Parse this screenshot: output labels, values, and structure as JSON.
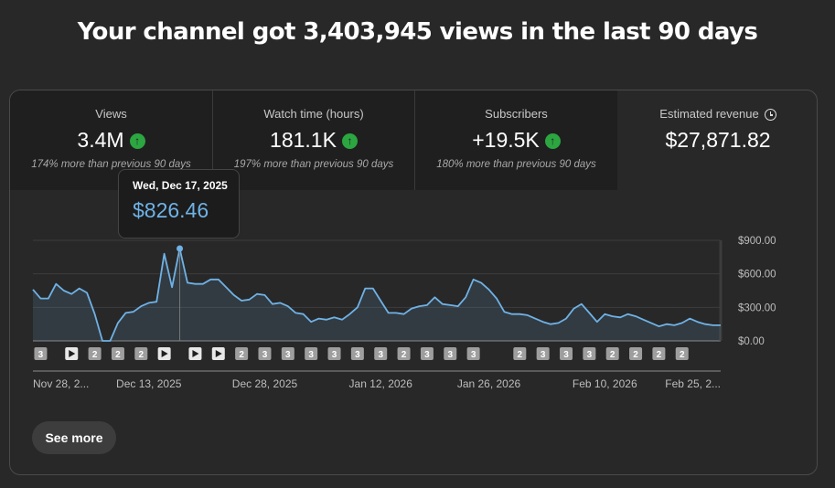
{
  "headline": "Your channel got 3,403,945 views in the last 90 days",
  "metrics": [
    {
      "title": "Views",
      "value": "3.4M",
      "sub": "174% more than previous 90 days",
      "trend": "up"
    },
    {
      "title": "Watch time (hours)",
      "value": "181.1K",
      "sub": "197% more than previous 90 days",
      "trend": "up"
    },
    {
      "title": "Subscribers",
      "value": "+19.5K",
      "sub": "180% more than previous 90 days",
      "trend": "up"
    },
    {
      "title": "Estimated revenue",
      "value": "$27,871.82",
      "sub": "",
      "trend": "none",
      "icon": "clock-icon"
    }
  ],
  "tooltip": {
    "date": "Wed, Dec 17, 2025",
    "value": "$826.46"
  },
  "see_more": "See more",
  "colors": {
    "line": "#6fb2e6",
    "up": "#2ba640"
  },
  "chart_data": {
    "type": "area",
    "title": "Estimated revenue",
    "yticks": [
      "$900.00",
      "$600.00",
      "$300.00",
      "$0.00"
    ],
    "ylim": [
      0,
      900
    ],
    "x_tick_labels": [
      "Nov 28, 2...",
      "Dec 13, 2025",
      "Dec 28, 2025",
      "Jan 12, 2026",
      "Jan 26, 2026",
      "Feb 10, 2026",
      "Feb 25, 2..."
    ],
    "x_tick_days": [
      0,
      15,
      30,
      45,
      59,
      74,
      89
    ],
    "highlight": {
      "day": 19,
      "label": "Wed, Dec 17, 2025",
      "value": 826.46
    },
    "values": [
      460,
      380,
      380,
      510,
      450,
      420,
      470,
      430,
      240,
      0,
      0,
      160,
      250,
      260,
      310,
      340,
      350,
      780,
      480,
      826.46,
      520,
      510,
      510,
      550,
      550,
      480,
      410,
      360,
      370,
      420,
      410,
      330,
      340,
      310,
      250,
      240,
      170,
      200,
      190,
      210,
      190,
      240,
      300,
      470,
      470,
      360,
      250,
      250,
      240,
      290,
      310,
      320,
      390,
      330,
      320,
      310,
      390,
      550,
      520,
      460,
      380,
      260,
      240,
      240,
      230,
      200,
      170,
      150,
      160,
      200,
      290,
      330,
      250,
      170,
      240,
      220,
      210,
      240,
      220,
      190,
      160,
      130,
      150,
      140,
      160,
      200,
      170,
      150,
      140,
      140
    ],
    "markers": [
      {
        "day": 1,
        "label": "3"
      },
      {
        "day": 5,
        "label": "play"
      },
      {
        "day": 8,
        "label": "2"
      },
      {
        "day": 11,
        "label": "2"
      },
      {
        "day": 14,
        "label": "2"
      },
      {
        "day": 17,
        "label": "play"
      },
      {
        "day": 21,
        "label": "play"
      },
      {
        "day": 24,
        "label": "play"
      },
      {
        "day": 27,
        "label": "2"
      },
      {
        "day": 30,
        "label": "3"
      },
      {
        "day": 33,
        "label": "3"
      },
      {
        "day": 36,
        "label": "3"
      },
      {
        "day": 39,
        "label": "3"
      },
      {
        "day": 42,
        "label": "3"
      },
      {
        "day": 45,
        "label": "3"
      },
      {
        "day": 48,
        "label": "2"
      },
      {
        "day": 51,
        "label": "3"
      },
      {
        "day": 54,
        "label": "3"
      },
      {
        "day": 57,
        "label": "3"
      },
      {
        "day": 63,
        "label": "2"
      },
      {
        "day": 66,
        "label": "3"
      },
      {
        "day": 69,
        "label": "3"
      },
      {
        "day": 72,
        "label": "3"
      },
      {
        "day": 75,
        "label": "2"
      },
      {
        "day": 78,
        "label": "2"
      },
      {
        "day": 81,
        "label": "2"
      },
      {
        "day": 84,
        "label": "2"
      }
    ]
  }
}
